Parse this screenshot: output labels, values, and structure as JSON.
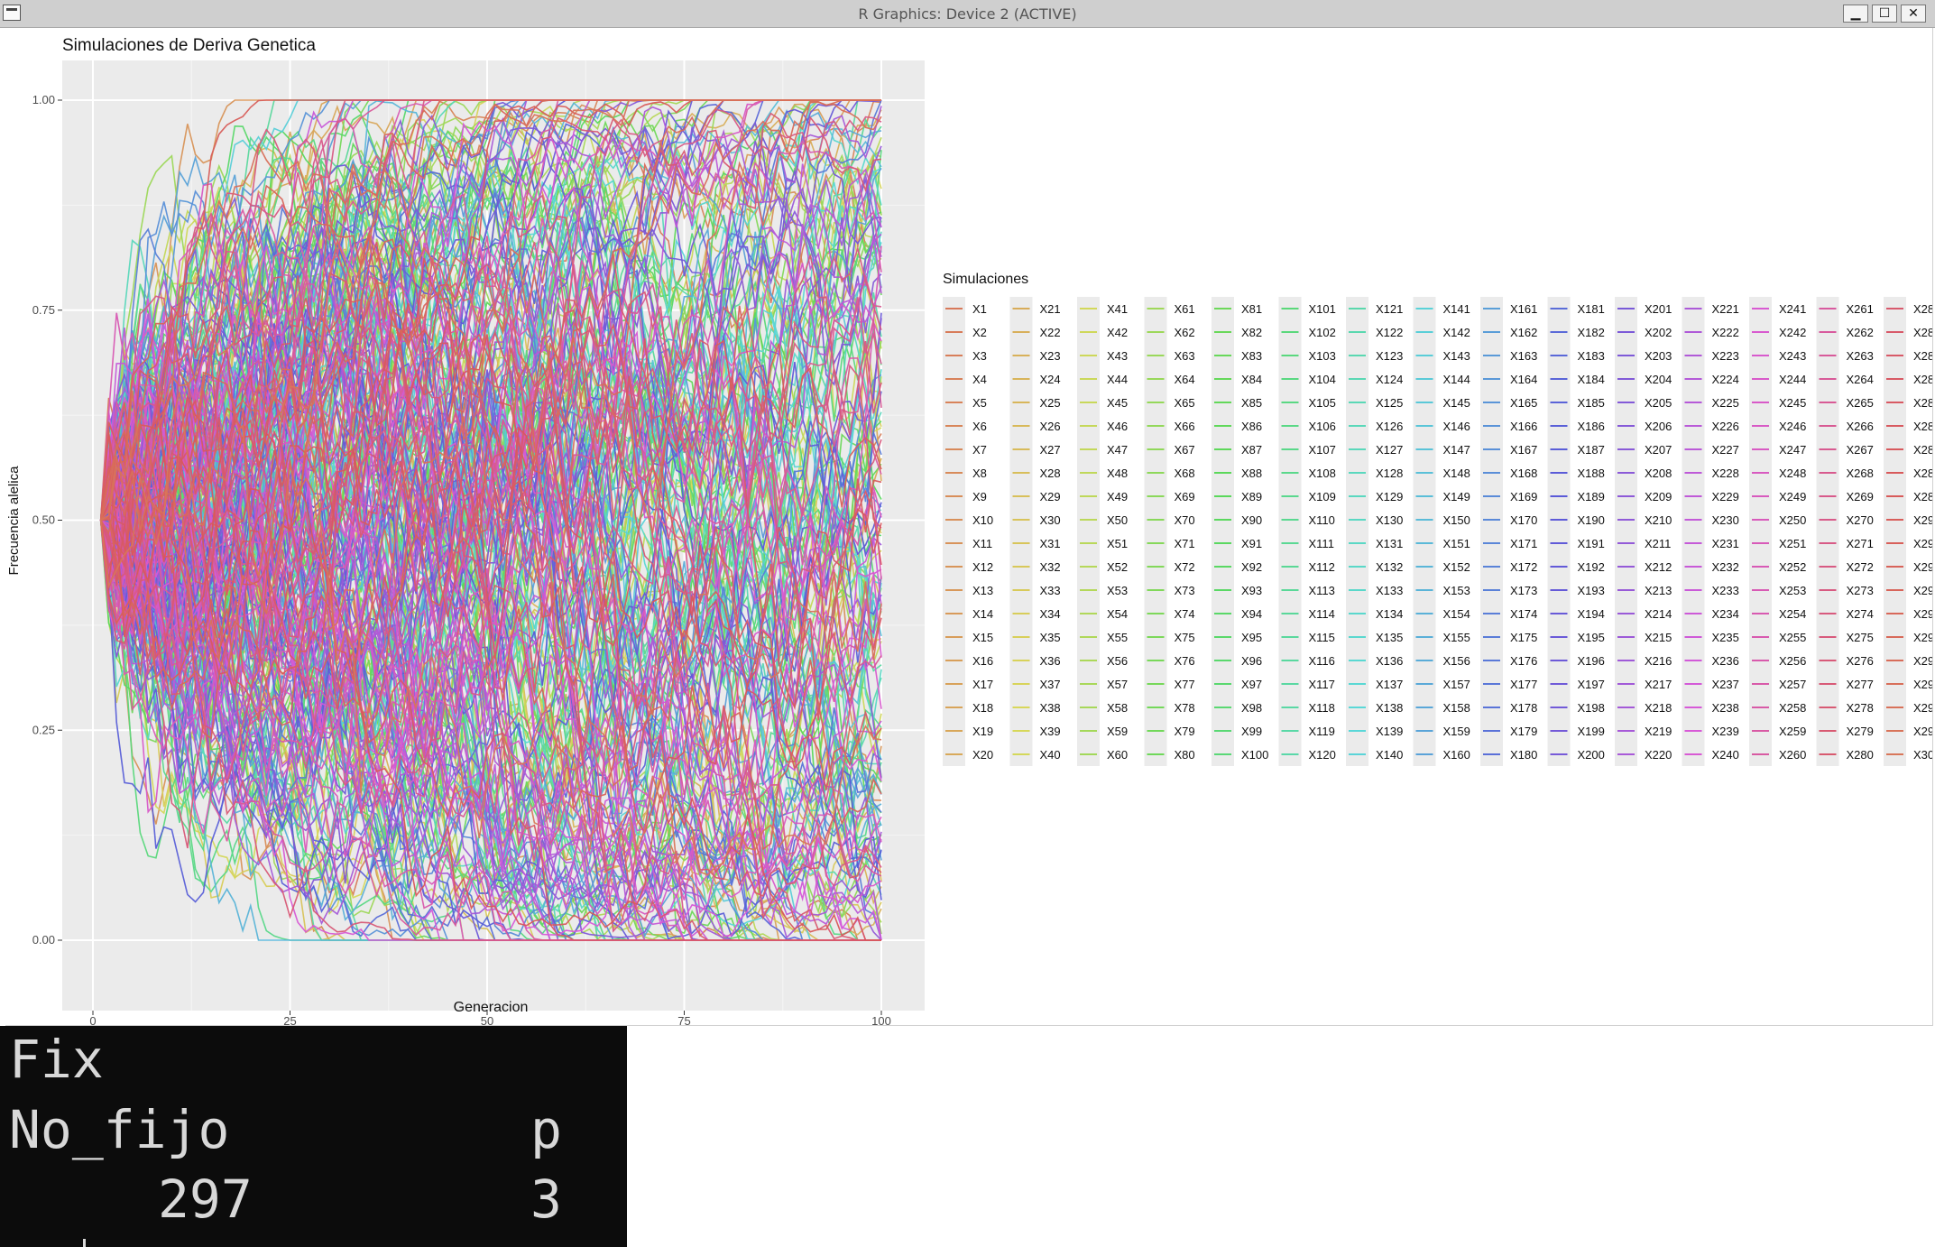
{
  "window": {
    "title": "R Graphics: Device 2 (ACTIVE)",
    "buttons": {
      "minimize": "▁",
      "maximize": "☐",
      "close": "✕"
    }
  },
  "chart_data": {
    "type": "line",
    "title": "Simulaciones de Deriva Genetica",
    "xlabel": "Generacion",
    "ylabel": "Frecuencia alelica",
    "xlim": [
      0,
      100
    ],
    "ylim": [
      0,
      1
    ],
    "x_ticks": [
      "0",
      "25",
      "50",
      "75",
      "100"
    ],
    "y_ticks": [
      "0.00",
      "0.25",
      "0.50",
      "0.75",
      "1.00"
    ],
    "grid": true,
    "initial_frequency": 0.5,
    "generations": 100,
    "n_series": 300,
    "series_name_prefix": "X",
    "legend_title": "Simulaciones",
    "legend_position": "right",
    "legend_rows": 20,
    "legend_columns": 15
  },
  "terminal": {
    "line1": "Fix",
    "header_left": "No_fijo",
    "header_right": "p",
    "value_left": "297",
    "value_right": "3"
  }
}
